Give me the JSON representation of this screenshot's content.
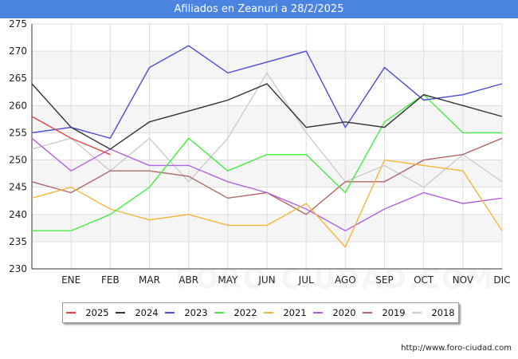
{
  "title": "Afiliados en Zeanuri a 28/2/2025",
  "footer_url": "http://www.foro-ciudad.com",
  "watermark": "FORO-CIUDAD.COM",
  "colors": {
    "title_bg": "#4a84e0",
    "plot_bg": "#f5f5f5",
    "grid": "#dddddd"
  },
  "chart_data": {
    "type": "line",
    "title": "Afiliados en Zeanuri a 28/2/2025",
    "categories": [
      "",
      "ENE",
      "FEB",
      "MAR",
      "ABR",
      "MAY",
      "JUN",
      "JUL",
      "AGO",
      "SEP",
      "OCT",
      "NOV",
      "DIC"
    ],
    "ylim": [
      230,
      275
    ],
    "yticks": [
      230,
      235,
      240,
      245,
      250,
      255,
      260,
      265,
      270,
      275
    ],
    "xlabel": "",
    "ylabel": "",
    "grid": true,
    "legend_position": "bottom",
    "series": [
      {
        "name": "2025",
        "color": "#e84040",
        "values": [
          258,
          254,
          251,
          null,
          null,
          null,
          null,
          null,
          null,
          null,
          null,
          null,
          null
        ]
      },
      {
        "name": "2024",
        "color": "#333333",
        "values": [
          264,
          256,
          252,
          257,
          259,
          261,
          264,
          256,
          257,
          256,
          262,
          260,
          258
        ]
      },
      {
        "name": "2023",
        "color": "#4a4ad8",
        "values": [
          255,
          256,
          254,
          267,
          271,
          266,
          268,
          270,
          256,
          267,
          261,
          262,
          264
        ]
      },
      {
        "name": "2022",
        "color": "#44ee44",
        "values": [
          237,
          237,
          240,
          245,
          254,
          248,
          251,
          251,
          244,
          257,
          262,
          255,
          255
        ]
      },
      {
        "name": "2021",
        "color": "#f4b63c",
        "values": [
          243,
          245,
          241,
          239,
          240,
          238,
          238,
          242,
          234,
          250,
          249,
          248,
          237
        ]
      },
      {
        "name": "2020",
        "color": "#b060e0",
        "values": [
          254,
          248,
          252,
          249,
          249,
          246,
          244,
          241,
          237,
          241,
          244,
          242,
          243
        ]
      },
      {
        "name": "2019",
        "color": "#b06868",
        "values": [
          246,
          244,
          248,
          248,
          247,
          243,
          244,
          240,
          246,
          246,
          250,
          251,
          254
        ]
      },
      {
        "name": "2018",
        "color": "#cccccc",
        "values": [
          252,
          254,
          248,
          254,
          246,
          254,
          266,
          255,
          246,
          249,
          245,
          251,
          246
        ]
      }
    ]
  }
}
